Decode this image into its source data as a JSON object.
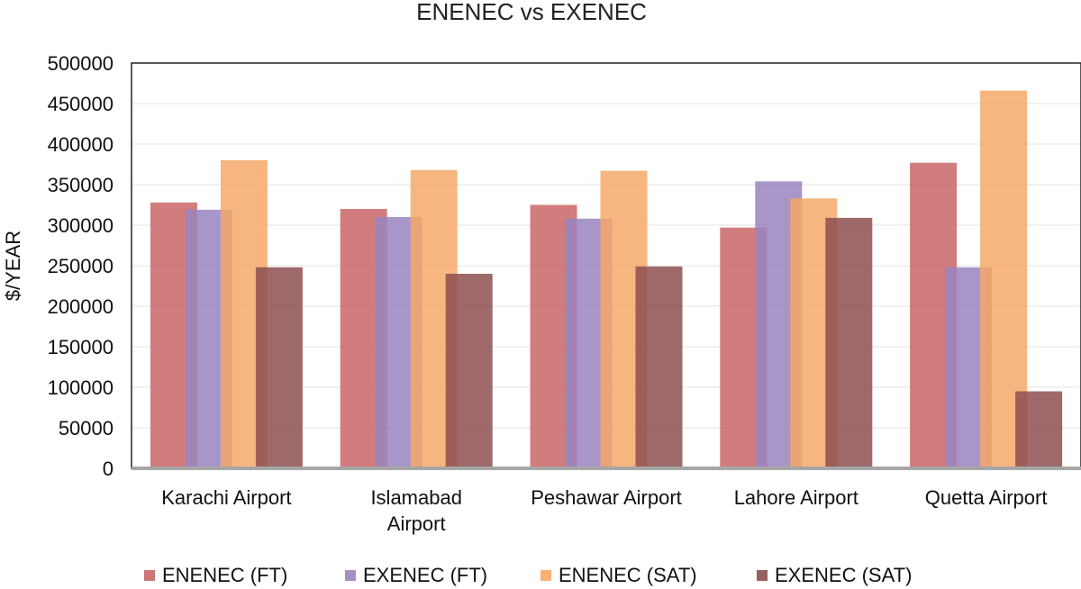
{
  "chart_data": {
    "type": "bar",
    "title": "ENENEC vs EXENEC",
    "xlabel": "",
    "ylabel": "$/YEAR",
    "ylim": [
      0,
      500000
    ],
    "yticks": [
      "0",
      "50000",
      "100000",
      "150000",
      "200000",
      "250000",
      "300000",
      "350000",
      "400000",
      "450000",
      "500000"
    ],
    "grid": true,
    "legend_position": "bottom",
    "categories": [
      [
        "Karachi Airport"
      ],
      [
        "Islamabad",
        "Airport"
      ],
      [
        "Peshawar Airport"
      ],
      [
        "Lahore Airport"
      ],
      [
        "Quetta Airport"
      ]
    ],
    "series": [
      {
        "name": "ENENEC (FT)",
        "color": "#c96666",
        "values": [
          328000,
          320000,
          325000,
          297000,
          377000
        ]
      },
      {
        "name": "EXENEC (FT)",
        "color": "#9a84bf",
        "values": [
          319000,
          310000,
          308000,
          354000,
          248000
        ]
      },
      {
        "name": "ENENEC (SAT)",
        "color": "#f6a868",
        "values": [
          380000,
          368000,
          367000,
          333000,
          466000
        ]
      },
      {
        "name": "EXENEC (SAT)",
        "color": "#8c4f4f",
        "values": [
          248000,
          240000,
          249000,
          309000,
          95000
        ]
      }
    ]
  }
}
